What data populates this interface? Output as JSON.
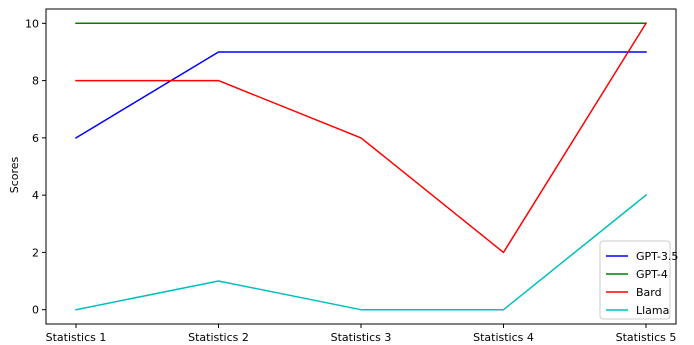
{
  "chart_data": {
    "type": "line",
    "title": "",
    "xlabel": "",
    "ylabel": "Scores",
    "categories": [
      "Statistics 1",
      "Statistics 2",
      "Statistics 3",
      "Statistics 4",
      "Statistics 5"
    ],
    "ylim": [
      -0.5,
      10.5
    ],
    "yticks": [
      0,
      2,
      4,
      6,
      8,
      10
    ],
    "grid": false,
    "legend_position": "lower-right",
    "series": [
      {
        "name": "GPT-3.5",
        "color": "#0000ff",
        "values": [
          6,
          9,
          9,
          9,
          9
        ]
      },
      {
        "name": "GPT-4",
        "color": "#008000",
        "values": [
          10,
          10,
          10,
          10,
          10
        ]
      },
      {
        "name": "Bard",
        "color": "#ff0000",
        "values": [
          8,
          8,
          6,
          2,
          10
        ]
      },
      {
        "name": "Llama",
        "color": "#00bfbf",
        "values": [
          0,
          1,
          0,
          0,
          4
        ]
      }
    ]
  }
}
